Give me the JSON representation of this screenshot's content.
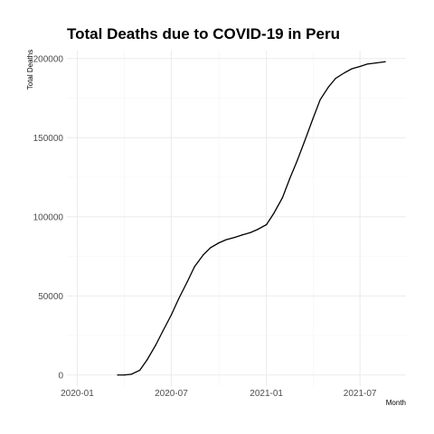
{
  "chart_data": {
    "type": "line",
    "title": "Total Deaths due to COVID-19 in Peru",
    "xlabel": "Month",
    "ylabel": "Total Deaths",
    "xlim": [
      "2019-12-12",
      "2021-09-28"
    ],
    "ylim": [
      -7000,
      205000
    ],
    "grid": true,
    "x_ticks": [
      {
        "date": "2020-01-01",
        "label": "2020-01"
      },
      {
        "date": "2020-07-01",
        "label": "2020-07"
      },
      {
        "date": "2021-01-01",
        "label": "2021-01"
      },
      {
        "date": "2021-07-01",
        "label": "2021-07"
      }
    ],
    "y_ticks": [
      {
        "value": 0,
        "label": "0"
      },
      {
        "value": 50000,
        "label": "50000"
      },
      {
        "value": 100000,
        "label": "100000"
      },
      {
        "value": 150000,
        "label": "150000"
      },
      {
        "value": 200000,
        "label": "200000"
      }
    ],
    "series": [
      {
        "color": "#000000",
        "x": [
          "2020-03-19",
          "2020-04-01",
          "2020-04-15",
          "2020-05-01",
          "2020-05-15",
          "2020-06-01",
          "2020-06-15",
          "2020-07-01",
          "2020-07-15",
          "2020-08-01",
          "2020-08-15",
          "2020-09-01",
          "2020-09-15",
          "2020-10-01",
          "2020-10-15",
          "2020-11-01",
          "2020-11-15",
          "2020-12-01",
          "2020-12-15",
          "2021-01-01",
          "2021-01-15",
          "2021-02-01",
          "2021-02-15",
          "2021-03-01",
          "2021-03-15",
          "2021-04-01",
          "2021-04-15",
          "2021-05-01",
          "2021-05-15",
          "2021-06-01",
          "2021-06-15",
          "2021-07-01",
          "2021-07-15",
          "2021-08-01",
          "2021-08-19"
        ],
        "y": [
          0,
          0,
          500,
          3000,
          9500,
          19000,
          28000,
          38000,
          48000,
          59000,
          68500,
          76000,
          80500,
          83500,
          85500,
          87000,
          88500,
          90000,
          92000,
          95000,
          102000,
          112000,
          124000,
          135000,
          147000,
          162000,
          174000,
          182000,
          187500,
          191000,
          193500,
          195000,
          196500,
          197200,
          198000
        ]
      }
    ]
  }
}
